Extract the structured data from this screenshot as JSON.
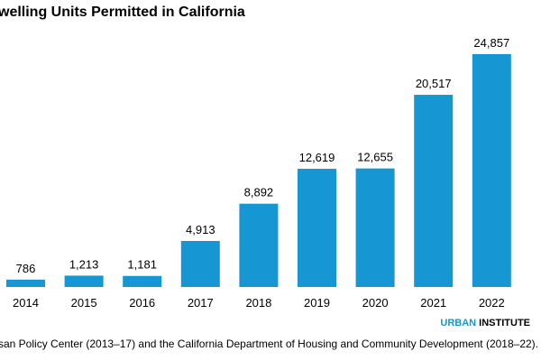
{
  "chart_data": {
    "type": "bar",
    "title": "welling Units Permitted in California",
    "categories": [
      "2014",
      "2015",
      "2016",
      "2017",
      "2018",
      "2019",
      "2020",
      "2021",
      "2022"
    ],
    "values": [
      786,
      1213,
      1181,
      4913,
      8892,
      12619,
      12655,
      20517,
      24857
    ],
    "value_labels": [
      "786",
      "1,213",
      "1,181",
      "4,913",
      "8,892",
      "12,619",
      "12,655",
      "20,517",
      "24,857"
    ],
    "xlabel": "",
    "ylabel": "",
    "ylim": [
      0,
      25000
    ],
    "grid": false,
    "bar_color": "#1696d2"
  },
  "source": "san Policy Center (2013–17) and the California Department of Housing and Community Development (2018–22).",
  "logo": {
    "part1": "URBAN",
    "part2": " INSTITUTE"
  }
}
